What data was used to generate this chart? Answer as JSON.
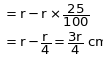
{
  "line1": "= r − r × $\\dfrac{25}{100}$",
  "line2": "= r − $\\dfrac{r}{4}$ = $\\dfrac{3r}{4}$ cm",
  "bg_color": "#ffffff",
  "text_color": "#000000",
  "fontsize": 9.5
}
